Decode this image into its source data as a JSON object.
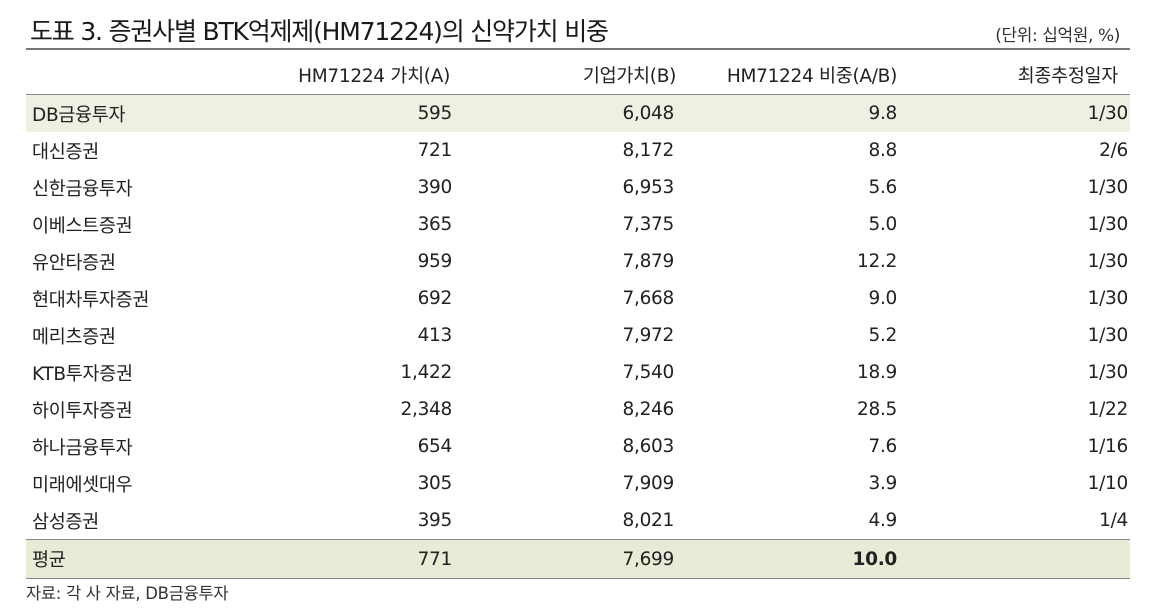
{
  "title": "도표 3. 증권사별 BTK억제제(HM71224)의 신약가치 비중",
  "unit": "(단위: 십억원, %)",
  "headers": [
    "",
    "HM71224 가치(A)",
    "기업가치(B)",
    "HM71224 비중(A/B)",
    "최종추정일자"
  ],
  "rows": [
    {
      "broker": "DB금융투자",
      "value": "595",
      "firm_value": "6,048",
      "share": "9.8",
      "date": "1/30"
    },
    {
      "broker": "대신증권",
      "value": "721",
      "firm_value": "8,172",
      "share": "8.8",
      "date": "2/6"
    },
    {
      "broker": "신한금융투자",
      "value": "390",
      "firm_value": "6,953",
      "share": "5.6",
      "date": "1/30"
    },
    {
      "broker": "이베스트증권",
      "value": "365",
      "firm_value": "7,375",
      "share": "5.0",
      "date": "1/30"
    },
    {
      "broker": "유안타증권",
      "value": "959",
      "firm_value": "7,879",
      "share": "12.2",
      "date": "1/30"
    },
    {
      "broker": "현대차투자증권",
      "value": "692",
      "firm_value": "7,668",
      "share": "9.0",
      "date": "1/30"
    },
    {
      "broker": "메리츠증권",
      "value": "413",
      "firm_value": "7,972",
      "share": "5.2",
      "date": "1/30"
    },
    {
      "broker": "KTB투자증권",
      "value": "1,422",
      "firm_value": "7,540",
      "share": "18.9",
      "date": "1/30"
    },
    {
      "broker": "하이투자증권",
      "value": "2,348",
      "firm_value": "8,246",
      "share": "28.5",
      "date": "1/22"
    },
    {
      "broker": "하나금융투자",
      "value": "654",
      "firm_value": "8,603",
      "share": "7.6",
      "date": "1/16"
    },
    {
      "broker": "미래에셋대우",
      "value": "305",
      "firm_value": "7,909",
      "share": "3.9",
      "date": "1/10"
    },
    {
      "broker": "삼성증권",
      "value": "395",
      "firm_value": "8,021",
      "share": "4.9",
      "date": "1/4"
    }
  ],
  "average": {
    "label": "평균",
    "value": "771",
    "firm_value": "7,699",
    "share": "10.0",
    "date": ""
  },
  "source": "자료: 각 사 자료, DB금융투자",
  "colors": {
    "highlight_row": "#eef1e2",
    "average_row": "#e7ecd6",
    "rule": "#777777"
  }
}
